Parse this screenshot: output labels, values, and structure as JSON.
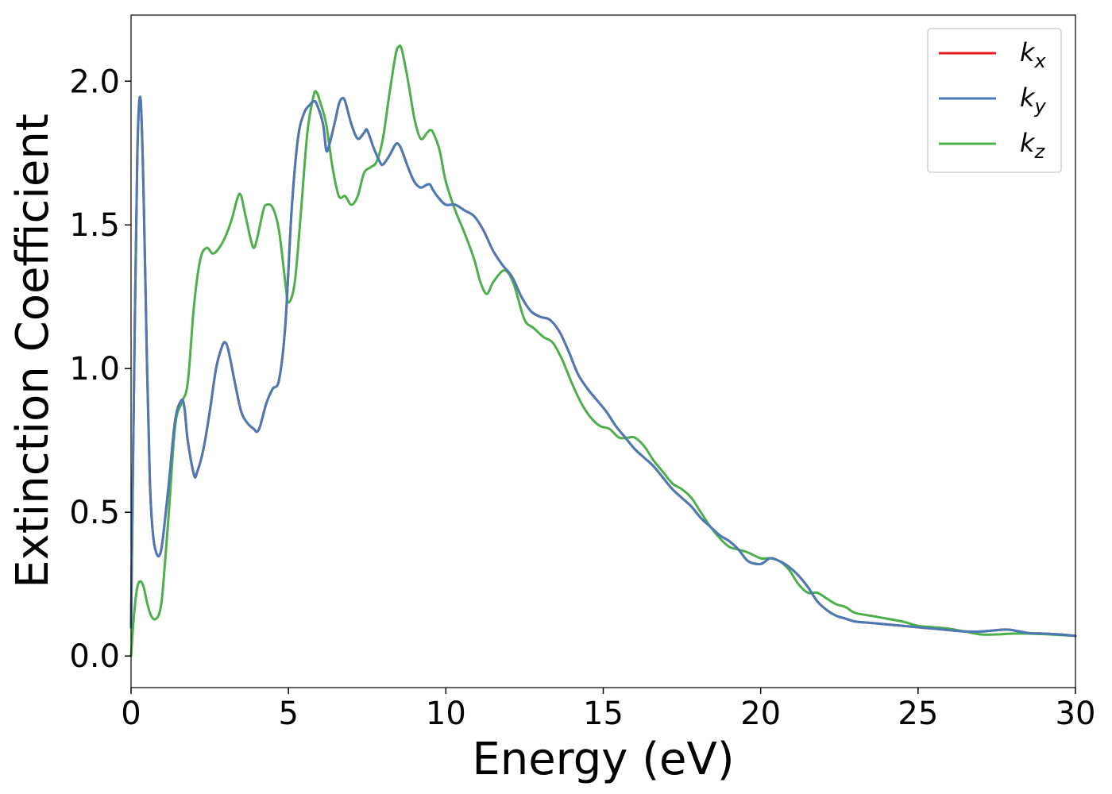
{
  "chart_data": {
    "type": "line",
    "title": "",
    "xlabel": "Energy (eV)",
    "ylabel": "Extinction Coefficient",
    "xlim": [
      0,
      30
    ],
    "ylim": [
      -0.11,
      2.23
    ],
    "xticks": [
      0,
      5,
      10,
      15,
      20,
      25,
      30
    ],
    "xtick_labels": [
      "0",
      "5",
      "10",
      "15",
      "20",
      "25",
      "30"
    ],
    "yticks": [
      0.0,
      0.5,
      1.0,
      1.5,
      2.0
    ],
    "ytick_labels": [
      "0.0",
      "0.5",
      "1.0",
      "1.5",
      "2.0"
    ],
    "grid": false,
    "legend_position": "top-right",
    "series": [
      {
        "name": "k",
        "subscript": "x",
        "color": "#e41a1c",
        "x": [
          0,
          0.1,
          0.2,
          0.3,
          0.4,
          0.5,
          0.6,
          0.7,
          0.8,
          0.9,
          1.0,
          1.2,
          1.4,
          1.6,
          1.7,
          1.8,
          2.0,
          2.1,
          2.3,
          2.5,
          2.7,
          2.9,
          3.0,
          3.1,
          3.3,
          3.5,
          3.7,
          3.9,
          4.0,
          4.1,
          4.3,
          4.5,
          4.7,
          4.9,
          5.1,
          5.3,
          5.5,
          5.7,
          5.8,
          5.9,
          6.1,
          6.2,
          6.3,
          6.5,
          6.6,
          6.7,
          6.8,
          7.0,
          7.2,
          7.4,
          7.5,
          7.7,
          7.9,
          8.0,
          8.2,
          8.4,
          8.5,
          8.6,
          8.8,
          9.0,
          9.2,
          9.4,
          9.5,
          9.6,
          9.8,
          10.0,
          10.3,
          10.6,
          10.9,
          11.2,
          11.5,
          11.8,
          12.1,
          12.4,
          12.7,
          13.0,
          13.3,
          13.6,
          13.9,
          14.2,
          14.5,
          14.8,
          15.1,
          15.4,
          15.7,
          16.0,
          16.3,
          16.6,
          16.9,
          17.2,
          17.5,
          17.8,
          18.1,
          18.4,
          18.7,
          19.0,
          19.3,
          19.6,
          20.0,
          20.3,
          20.6,
          20.9,
          21.2,
          21.5,
          21.8,
          22.1,
          22.4,
          22.7,
          23.0,
          23.5,
          24.0,
          24.5,
          25.0,
          25.5,
          26.0,
          26.5,
          27.0,
          27.5,
          27.8,
          28.0,
          28.5,
          29.0,
          29.5,
          30.0
        ],
        "y": [
          0.1,
          1.0,
          1.75,
          1.94,
          1.6,
          1.05,
          0.6,
          0.42,
          0.36,
          0.35,
          0.4,
          0.6,
          0.82,
          0.89,
          0.86,
          0.75,
          0.63,
          0.64,
          0.72,
          0.85,
          1.0,
          1.08,
          1.09,
          1.06,
          0.95,
          0.85,
          0.81,
          0.79,
          0.78,
          0.8,
          0.88,
          0.93,
          0.96,
          1.15,
          1.55,
          1.8,
          1.89,
          1.92,
          1.93,
          1.92,
          1.85,
          1.76,
          1.78,
          1.87,
          1.92,
          1.94,
          1.93,
          1.85,
          1.8,
          1.82,
          1.83,
          1.77,
          1.72,
          1.71,
          1.74,
          1.78,
          1.78,
          1.76,
          1.7,
          1.65,
          1.63,
          1.64,
          1.64,
          1.62,
          1.59,
          1.57,
          1.57,
          1.55,
          1.53,
          1.48,
          1.41,
          1.36,
          1.32,
          1.25,
          1.2,
          1.18,
          1.17,
          1.13,
          1.06,
          0.98,
          0.93,
          0.89,
          0.85,
          0.8,
          0.76,
          0.72,
          0.69,
          0.66,
          0.62,
          0.58,
          0.55,
          0.52,
          0.48,
          0.45,
          0.42,
          0.4,
          0.37,
          0.33,
          0.32,
          0.34,
          0.33,
          0.31,
          0.28,
          0.24,
          0.19,
          0.16,
          0.14,
          0.13,
          0.12,
          0.115,
          0.11,
          0.105,
          0.1,
          0.095,
          0.09,
          0.085,
          0.085,
          0.09,
          0.092,
          0.09,
          0.08,
          0.078,
          0.075,
          0.07
        ]
      },
      {
        "name": "k",
        "subscript": "y",
        "color": "#4a7bb7",
        "x": [
          0,
          0.1,
          0.2,
          0.3,
          0.4,
          0.5,
          0.6,
          0.7,
          0.8,
          0.9,
          1.0,
          1.2,
          1.4,
          1.6,
          1.7,
          1.8,
          2.0,
          2.1,
          2.3,
          2.5,
          2.7,
          2.9,
          3.0,
          3.1,
          3.3,
          3.5,
          3.7,
          3.9,
          4.0,
          4.1,
          4.3,
          4.5,
          4.7,
          4.9,
          5.1,
          5.3,
          5.5,
          5.7,
          5.8,
          5.9,
          6.1,
          6.2,
          6.3,
          6.5,
          6.6,
          6.7,
          6.8,
          7.0,
          7.2,
          7.4,
          7.5,
          7.7,
          7.9,
          8.0,
          8.2,
          8.4,
          8.5,
          8.6,
          8.8,
          9.0,
          9.2,
          9.4,
          9.5,
          9.6,
          9.8,
          10.0,
          10.3,
          10.6,
          10.9,
          11.2,
          11.5,
          11.8,
          12.1,
          12.4,
          12.7,
          13.0,
          13.3,
          13.6,
          13.9,
          14.2,
          14.5,
          14.8,
          15.1,
          15.4,
          15.7,
          16.0,
          16.3,
          16.6,
          16.9,
          17.2,
          17.5,
          17.8,
          18.1,
          18.4,
          18.7,
          19.0,
          19.3,
          19.6,
          20.0,
          20.3,
          20.6,
          20.9,
          21.2,
          21.5,
          21.8,
          22.1,
          22.4,
          22.7,
          23.0,
          23.5,
          24.0,
          24.5,
          25.0,
          25.5,
          26.0,
          26.5,
          27.0,
          27.5,
          27.8,
          28.0,
          28.5,
          29.0,
          29.5,
          30.0
        ],
        "y": [
          0.1,
          1.0,
          1.75,
          1.94,
          1.6,
          1.05,
          0.6,
          0.42,
          0.36,
          0.35,
          0.4,
          0.6,
          0.82,
          0.89,
          0.86,
          0.75,
          0.63,
          0.64,
          0.72,
          0.85,
          1.0,
          1.08,
          1.09,
          1.06,
          0.95,
          0.85,
          0.81,
          0.79,
          0.78,
          0.8,
          0.88,
          0.93,
          0.96,
          1.15,
          1.55,
          1.8,
          1.89,
          1.92,
          1.93,
          1.92,
          1.85,
          1.76,
          1.78,
          1.87,
          1.92,
          1.94,
          1.93,
          1.85,
          1.8,
          1.82,
          1.83,
          1.77,
          1.72,
          1.71,
          1.74,
          1.78,
          1.78,
          1.76,
          1.7,
          1.65,
          1.63,
          1.64,
          1.64,
          1.62,
          1.59,
          1.57,
          1.57,
          1.55,
          1.53,
          1.48,
          1.41,
          1.36,
          1.32,
          1.25,
          1.2,
          1.18,
          1.17,
          1.13,
          1.06,
          0.98,
          0.93,
          0.89,
          0.85,
          0.8,
          0.76,
          0.72,
          0.69,
          0.66,
          0.62,
          0.58,
          0.55,
          0.52,
          0.48,
          0.45,
          0.42,
          0.4,
          0.37,
          0.33,
          0.32,
          0.34,
          0.33,
          0.31,
          0.28,
          0.24,
          0.19,
          0.16,
          0.14,
          0.13,
          0.12,
          0.115,
          0.11,
          0.105,
          0.1,
          0.095,
          0.09,
          0.085,
          0.085,
          0.09,
          0.092,
          0.09,
          0.08,
          0.078,
          0.075,
          0.07
        ]
      },
      {
        "name": "k",
        "subscript": "z",
        "color": "#4daf4a",
        "x": [
          0,
          0.1,
          0.2,
          0.3,
          0.4,
          0.5,
          0.6,
          0.7,
          0.8,
          0.9,
          1.0,
          1.2,
          1.4,
          1.6,
          1.8,
          2.0,
          2.2,
          2.4,
          2.6,
          2.8,
          3.0,
          3.2,
          3.4,
          3.5,
          3.6,
          3.8,
          3.9,
          4.0,
          4.2,
          4.3,
          4.5,
          4.7,
          4.9,
          5.0,
          5.2,
          5.4,
          5.6,
          5.8,
          5.9,
          6.0,
          6.2,
          6.4,
          6.6,
          6.8,
          7.0,
          7.2,
          7.4,
          7.6,
          7.8,
          8.0,
          8.2,
          8.4,
          8.5,
          8.6,
          8.8,
          9.0,
          9.2,
          9.4,
          9.5,
          9.6,
          9.8,
          10.0,
          10.3,
          10.6,
          10.9,
          11.1,
          11.3,
          11.5,
          11.8,
          12.0,
          12.2,
          12.5,
          12.8,
          13.1,
          13.4,
          13.7,
          14.0,
          14.3,
          14.6,
          14.9,
          15.2,
          15.5,
          15.8,
          16.0,
          16.3,
          16.6,
          16.9,
          17.2,
          17.5,
          17.8,
          18.1,
          18.4,
          18.7,
          19.0,
          19.3,
          19.6,
          20.0,
          20.3,
          20.6,
          20.9,
          21.2,
          21.5,
          21.8,
          22.1,
          22.4,
          22.7,
          23.0,
          23.5,
          24.0,
          24.5,
          25.0,
          25.5,
          26.0,
          26.5,
          27.0,
          27.5,
          28.0,
          28.5,
          29.0,
          29.5,
          30.0
        ],
        "y": [
          0.0,
          0.15,
          0.24,
          0.26,
          0.24,
          0.19,
          0.15,
          0.13,
          0.13,
          0.15,
          0.22,
          0.5,
          0.8,
          0.88,
          0.95,
          1.22,
          1.38,
          1.42,
          1.4,
          1.42,
          1.46,
          1.52,
          1.6,
          1.6,
          1.55,
          1.45,
          1.42,
          1.45,
          1.55,
          1.57,
          1.56,
          1.48,
          1.3,
          1.23,
          1.3,
          1.55,
          1.82,
          1.95,
          1.96,
          1.93,
          1.85,
          1.7,
          1.6,
          1.6,
          1.57,
          1.6,
          1.68,
          1.7,
          1.72,
          1.8,
          1.95,
          2.09,
          2.12,
          2.11,
          2.0,
          1.87,
          1.8,
          1.82,
          1.83,
          1.82,
          1.76,
          1.65,
          1.55,
          1.47,
          1.38,
          1.3,
          1.26,
          1.3,
          1.34,
          1.33,
          1.28,
          1.17,
          1.14,
          1.11,
          1.09,
          1.03,
          0.95,
          0.88,
          0.83,
          0.8,
          0.79,
          0.76,
          0.76,
          0.76,
          0.73,
          0.68,
          0.64,
          0.6,
          0.58,
          0.55,
          0.5,
          0.45,
          0.41,
          0.38,
          0.37,
          0.36,
          0.34,
          0.34,
          0.33,
          0.3,
          0.25,
          0.22,
          0.22,
          0.2,
          0.18,
          0.17,
          0.15,
          0.14,
          0.13,
          0.12,
          0.105,
          0.1,
          0.095,
          0.085,
          0.075,
          0.075,
          0.078,
          0.078,
          0.076,
          0.073,
          0.07
        ]
      }
    ]
  }
}
